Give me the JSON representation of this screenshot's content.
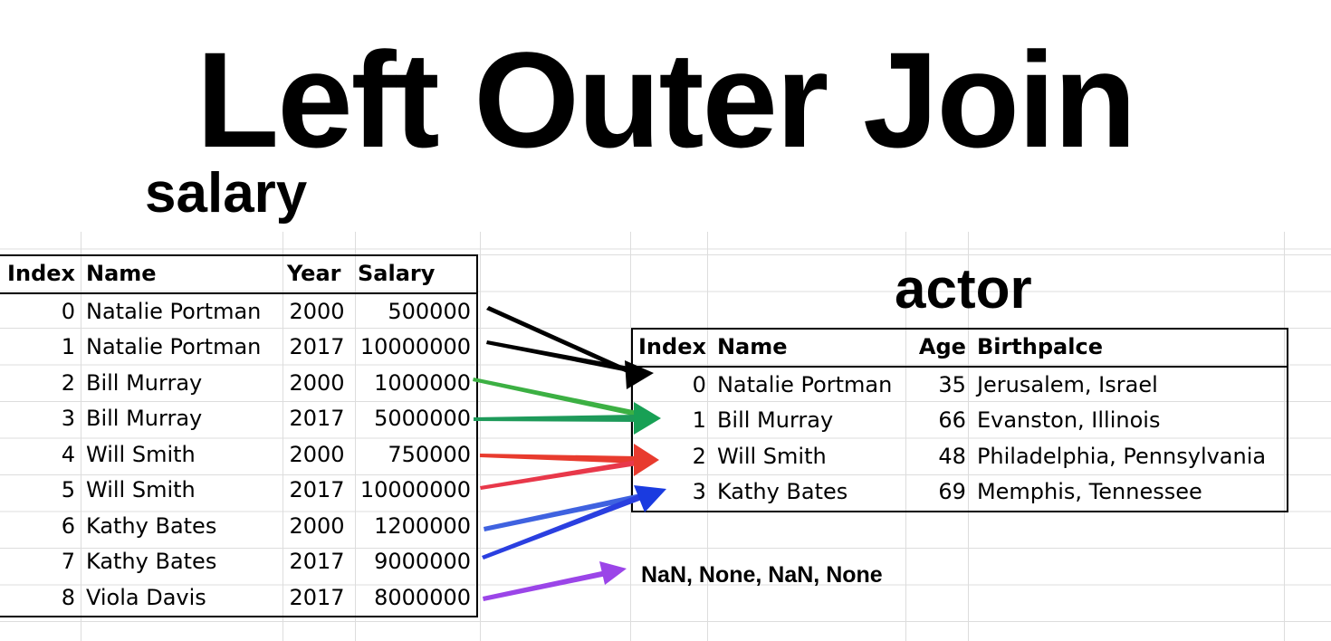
{
  "title": "Left Outer Join",
  "salary": {
    "label": "salary",
    "headers": [
      "Index",
      "Name",
      "Year",
      "Salary"
    ],
    "rows": [
      [
        "0",
        "Natalie Portman",
        "2000",
        "500000"
      ],
      [
        "1",
        "Natalie Portman",
        "2017",
        "10000000"
      ],
      [
        "2",
        "Bill Murray",
        "2000",
        "1000000"
      ],
      [
        "3",
        "Bill Murray",
        "2017",
        "5000000"
      ],
      [
        "4",
        "Will Smith",
        "2000",
        "750000"
      ],
      [
        "5",
        "Will Smith",
        "2017",
        "10000000"
      ],
      [
        "6",
        "Kathy Bates",
        "2000",
        "1200000"
      ],
      [
        "7",
        "Kathy Bates",
        "2017",
        "9000000"
      ],
      [
        "8",
        "Viola Davis",
        "2017",
        "8000000"
      ]
    ]
  },
  "actor": {
    "label": "actor",
    "headers": [
      "Index",
      "Name",
      "Age",
      "Birthpalce"
    ],
    "rows": [
      [
        "0",
        "Natalie Portman",
        "35",
        "Jerusalem, Israel"
      ],
      [
        "1",
        "Bill Murray",
        "66",
        "Evanston, Illinois"
      ],
      [
        "2",
        "Will Smith",
        "48",
        "Philadelphia, Pennsylvania"
      ],
      [
        "3",
        "Kathy Bates",
        "69",
        "Memphis, Tennessee"
      ]
    ]
  },
  "no_match_label": "NaN, None, NaN, None",
  "arrows": [
    {
      "from_salary_index": "0",
      "to": "actor-0",
      "color": "#000000"
    },
    {
      "from_salary_index": "1",
      "to": "actor-0",
      "color": "#000000"
    },
    {
      "from_salary_index": "2",
      "to": "actor-1",
      "color": "#3cb043"
    },
    {
      "from_salary_index": "3",
      "to": "actor-1",
      "color": "#1e9a5a"
    },
    {
      "from_salary_index": "4",
      "to": "actor-2",
      "color": "#e83b2e"
    },
    {
      "from_salary_index": "5",
      "to": "actor-2",
      "color": "#e8384a"
    },
    {
      "from_salary_index": "6",
      "to": "actor-3",
      "color": "#3f62e0"
    },
    {
      "from_salary_index": "7",
      "to": "actor-3",
      "color": "#2a3fe0"
    },
    {
      "from_salary_index": "8",
      "to": "no-match",
      "color": "#9b45e8"
    }
  ]
}
